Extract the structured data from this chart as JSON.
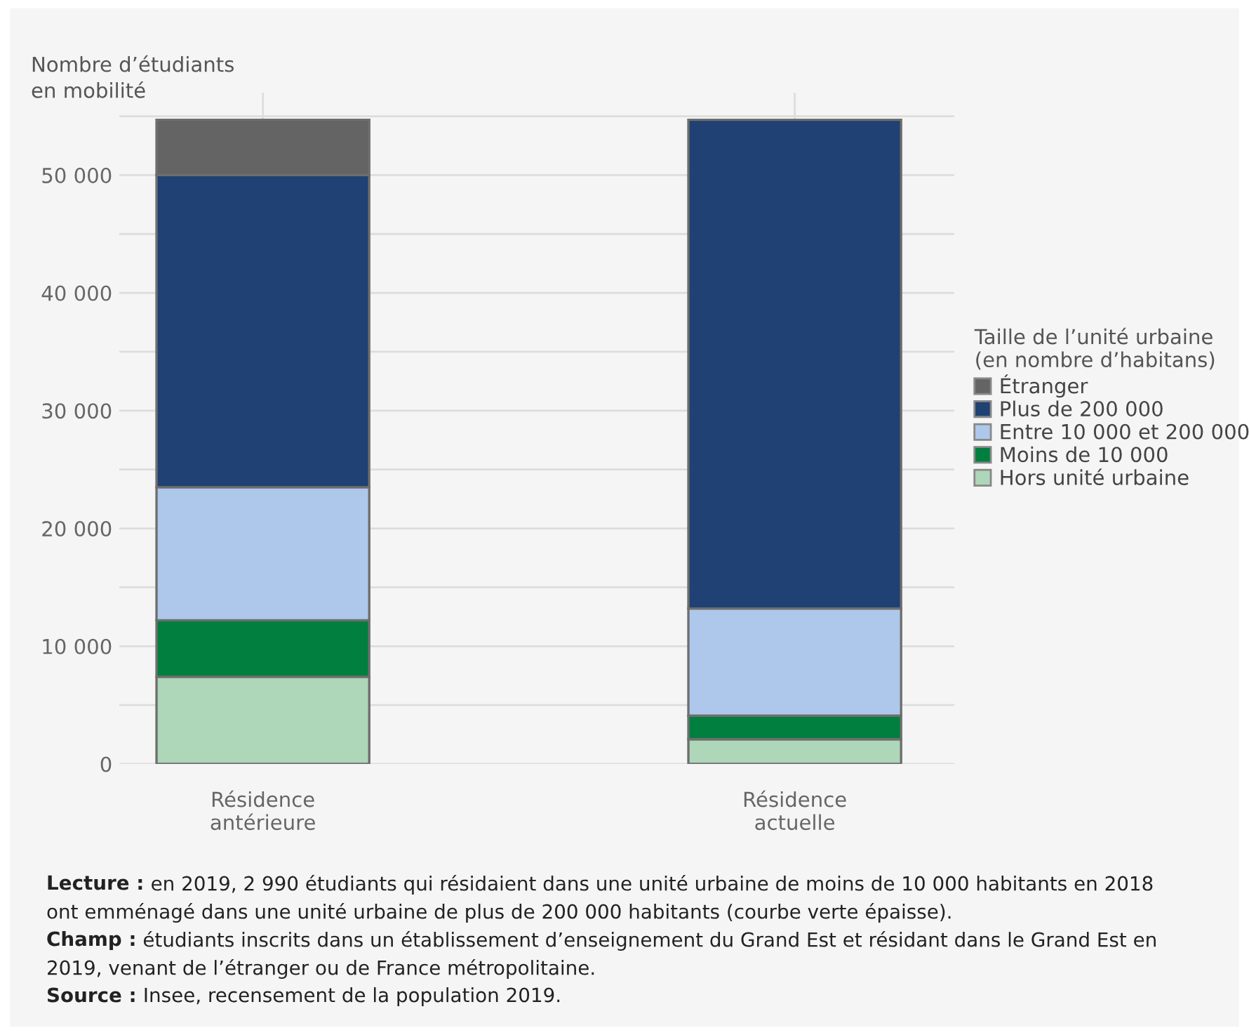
{
  "chart_data": {
    "type": "bar",
    "stacked": true,
    "ylabel": "Nombre d’étudiants\nen mobilité",
    "legend_title": "Taille de l’unité urbaine\n(en nombre d’habitans)",
    "categories": [
      "Résidence\nantérieure",
      "Résidence\nactuelle"
    ],
    "series": [
      {
        "name": "Hors unité urbaine",
        "color": "#aed6b8",
        "values": [
          7400,
          2100
        ]
      },
      {
        "name": "Moins de 10 000",
        "color": "#007f3f",
        "values": [
          4800,
          2000
        ]
      },
      {
        "name": "Entre 10 000 et 200 000",
        "color": "#aec8ec",
        "values": [
          11300,
          9100
        ]
      },
      {
        "name": "Plus de 200 000",
        "color": "#1f4173",
        "values": [
          26500,
          41500
        ]
      },
      {
        "name": "Étranger",
        "color": "#646464",
        "values": [
          4700,
          null
        ]
      }
    ],
    "ylim": [
      0,
      57000
    ],
    "yticks": [
      0,
      {
        "value": 5000,
        "label": null
      },
      {
        "value": 10000,
        "label": "10 000"
      },
      {
        "value": 15000,
        "label": null
      },
      {
        "value": 20000,
        "label": "20 000"
      },
      {
        "value": 25000,
        "label": null
      },
      {
        "value": 30000,
        "label": "30 000"
      },
      {
        "value": 35000,
        "label": null
      },
      {
        "value": 40000,
        "label": "40 000"
      },
      {
        "value": 45000,
        "label": null
      },
      {
        "value": 50000,
        "label": "50 000"
      },
      {
        "value": 55000,
        "label": null
      }
    ],
    "grid": true,
    "legend": "right",
    "annotations": [
      "Lecture : en 2019, 2 990 étudiants qui résidaient dans une unité urbaine de moins de 10 000 habitants en 2018\nont emménagé dans une unité urbaine de plus de 200 000 habitants (courbe verte épaisse).",
      "Champ : étudiants inscrits dans un établissement d’enseignement du Grand Est et résidant dans le Grand Est en\n2019, venant de l’étranger ou de France métropolitaine.",
      "Source : Insee, recensement de la population 2019."
    ]
  }
}
